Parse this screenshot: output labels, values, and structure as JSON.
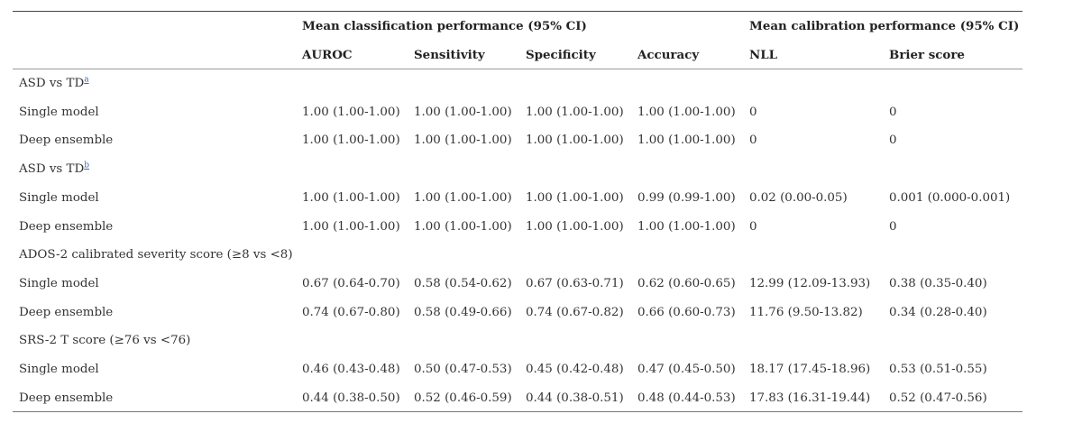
{
  "header": {
    "group1": "Mean classification performance (95% CI)",
    "group2": "Mean calibration performance (95% CI)",
    "columns": [
      "AUROC",
      "Sensitivity",
      "Specificity",
      "Accuracy",
      "NLL",
      "Brier score"
    ]
  },
  "sections": [
    {
      "label": "ASD vs TD",
      "footnote": "a",
      "rows": [
        {
          "label": "Single model",
          "values": [
            "1.00 (1.00-1.00)",
            "1.00 (1.00-1.00)",
            "1.00 (1.00-1.00)",
            "1.00 (1.00-1.00)",
            "0",
            "0"
          ]
        },
        {
          "label": "Deep ensemble",
          "values": [
            "1.00 (1.00-1.00)",
            "1.00 (1.00-1.00)",
            "1.00 (1.00-1.00)",
            "1.00 (1.00-1.00)",
            "0",
            "0"
          ]
        }
      ]
    },
    {
      "label": "ASD vs TD",
      "footnote": "b",
      "rows": [
        {
          "label": "Single model",
          "values": [
            "1.00 (1.00-1.00)",
            "1.00 (1.00-1.00)",
            "1.00 (1.00-1.00)",
            "0.99 (0.99-1.00)",
            "0.02 (0.00-0.05)",
            "0.001 (0.000-0.001)"
          ]
        },
        {
          "label": "Deep ensemble",
          "values": [
            "1.00 (1.00-1.00)",
            "1.00 (1.00-1.00)",
            "1.00 (1.00-1.00)",
            "1.00 (1.00-1.00)",
            "0",
            "0"
          ]
        }
      ]
    },
    {
      "label": "ADOS-2 calibrated severity score (≥8 vs <8)",
      "footnote": "",
      "rows": [
        {
          "label": "Single model",
          "values": [
            "0.67 (0.64-0.70)",
            "0.58 (0.54-0.62)",
            "0.67 (0.63-0.71)",
            "0.62 (0.60-0.65)",
            "12.99 (12.09-13.93)",
            "0.38 (0.35-0.40)"
          ]
        },
        {
          "label": "Deep ensemble",
          "values": [
            "0.74 (0.67-0.80)",
            "0.58 (0.49-0.66)",
            "0.74 (0.67-0.82)",
            "0.66 (0.60-0.73)",
            "11.76 (9.50-13.82)",
            "0.34 (0.28-0.40)"
          ]
        }
      ]
    },
    {
      "label": "SRS-2 T score (≥76 vs <76)",
      "footnote": "",
      "rows": [
        {
          "label": "Single model",
          "values": [
            "0.46 (0.43-0.48)",
            "0.50 (0.47-0.53)",
            "0.45 (0.42-0.48)",
            "0.47 (0.45-0.50)",
            "18.17 (17.45-18.96)",
            "0.53 (0.51-0.55)"
          ]
        },
        {
          "label": "Deep ensemble",
          "values": [
            "0.44 (0.38-0.50)",
            "0.52 (0.46-0.59)",
            "0.44 (0.38-0.51)",
            "0.48 (0.44-0.53)",
            "17.83 (16.31-19.44)",
            "0.52 (0.47-0.56)"
          ]
        }
      ]
    }
  ]
}
